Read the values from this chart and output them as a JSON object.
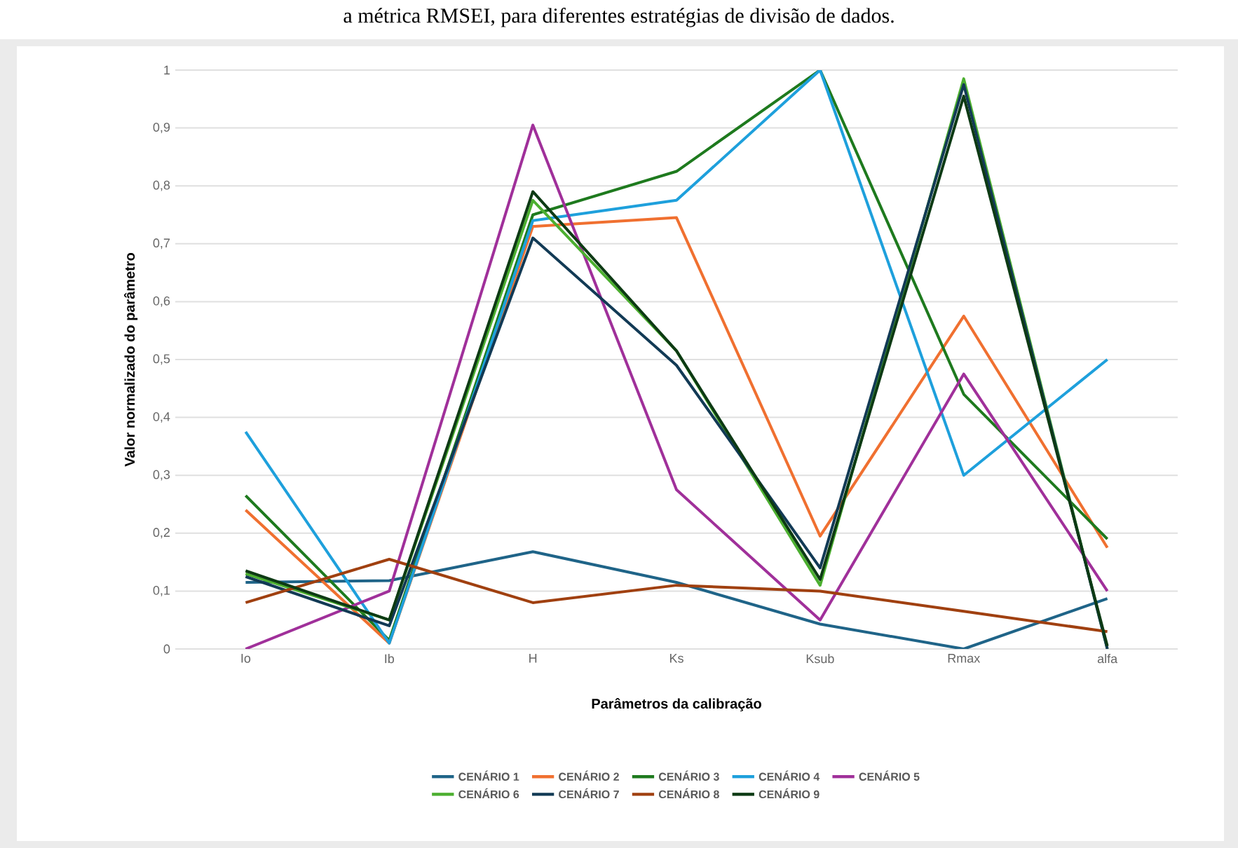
{
  "chart_data": {
    "type": "line",
    "title": "a métrica RMSEI, para diferentes estratégias de divisão de dados.",
    "xlabel": "Parâmetros da calibração",
    "ylabel": "Valor normalizado do parâmetro",
    "categories": [
      "Io",
      "Ib",
      "H",
      "Ks",
      "Ksub",
      "Rmax",
      "alfa"
    ],
    "ylim": [
      0,
      1
    ],
    "yticks": [
      0,
      {
        "value": 0.1,
        "label": "0,1"
      },
      {
        "value": 0.2,
        "label": "0,2"
      },
      {
        "value": 0.3,
        "label": "0,3"
      },
      {
        "value": 0.4,
        "label": "0,4"
      },
      {
        "value": 0.5,
        "label": "0,5"
      },
      {
        "value": 0.6,
        "label": "0,6"
      },
      {
        "value": 0.7,
        "label": "0,7"
      },
      {
        "value": 0.8,
        "label": "0,8"
      },
      {
        "value": 0.9,
        "label": "0,9"
      },
      1
    ],
    "grid": "y",
    "legend": "bottom",
    "marker": "none",
    "line_style": "solid",
    "series": [
      {
        "name": "CENÁRIO 1",
        "color": "#1f6488",
        "values": [
          0.115,
          0.118,
          0.168,
          0.115,
          0.043,
          0.0,
          0.087
        ]
      },
      {
        "name": "CENÁRIO 2",
        "color": "#f07030",
        "values": [
          0.24,
          0.01,
          0.73,
          0.745,
          0.195,
          0.575,
          0.175
        ]
      },
      {
        "name": "CENÁRIO 3",
        "color": "#1e7a1e",
        "values": [
          0.265,
          0.015,
          0.75,
          0.825,
          1.0,
          0.44,
          0.19
        ]
      },
      {
        "name": "CENÁRIO 4",
        "color": "#1ea0dc",
        "values": [
          0.375,
          0.01,
          0.74,
          0.775,
          1.0,
          0.3,
          0.5
        ]
      },
      {
        "name": "CENÁRIO 5",
        "color": "#a0309a",
        "values": [
          0.0,
          0.1,
          0.905,
          0.275,
          0.05,
          0.475,
          0.1
        ]
      },
      {
        "name": "CENÁRIO 6",
        "color": "#4caf30",
        "values": [
          0.13,
          0.05,
          0.775,
          0.515,
          0.11,
          0.985,
          0.0
        ]
      },
      {
        "name": "CENÁRIO 7",
        "color": "#123a55",
        "values": [
          0.125,
          0.04,
          0.71,
          0.49,
          0.14,
          0.975,
          0.0
        ]
      },
      {
        "name": "CENÁRIO 8",
        "color": "#a04010",
        "values": [
          0.08,
          0.155,
          0.08,
          0.11,
          0.1,
          0.065,
          0.03
        ]
      },
      {
        "name": "CENÁRIO 9",
        "color": "#0d3a14",
        "values": [
          0.135,
          0.05,
          0.79,
          0.515,
          0.12,
          0.955,
          0.005
        ]
      }
    ]
  }
}
